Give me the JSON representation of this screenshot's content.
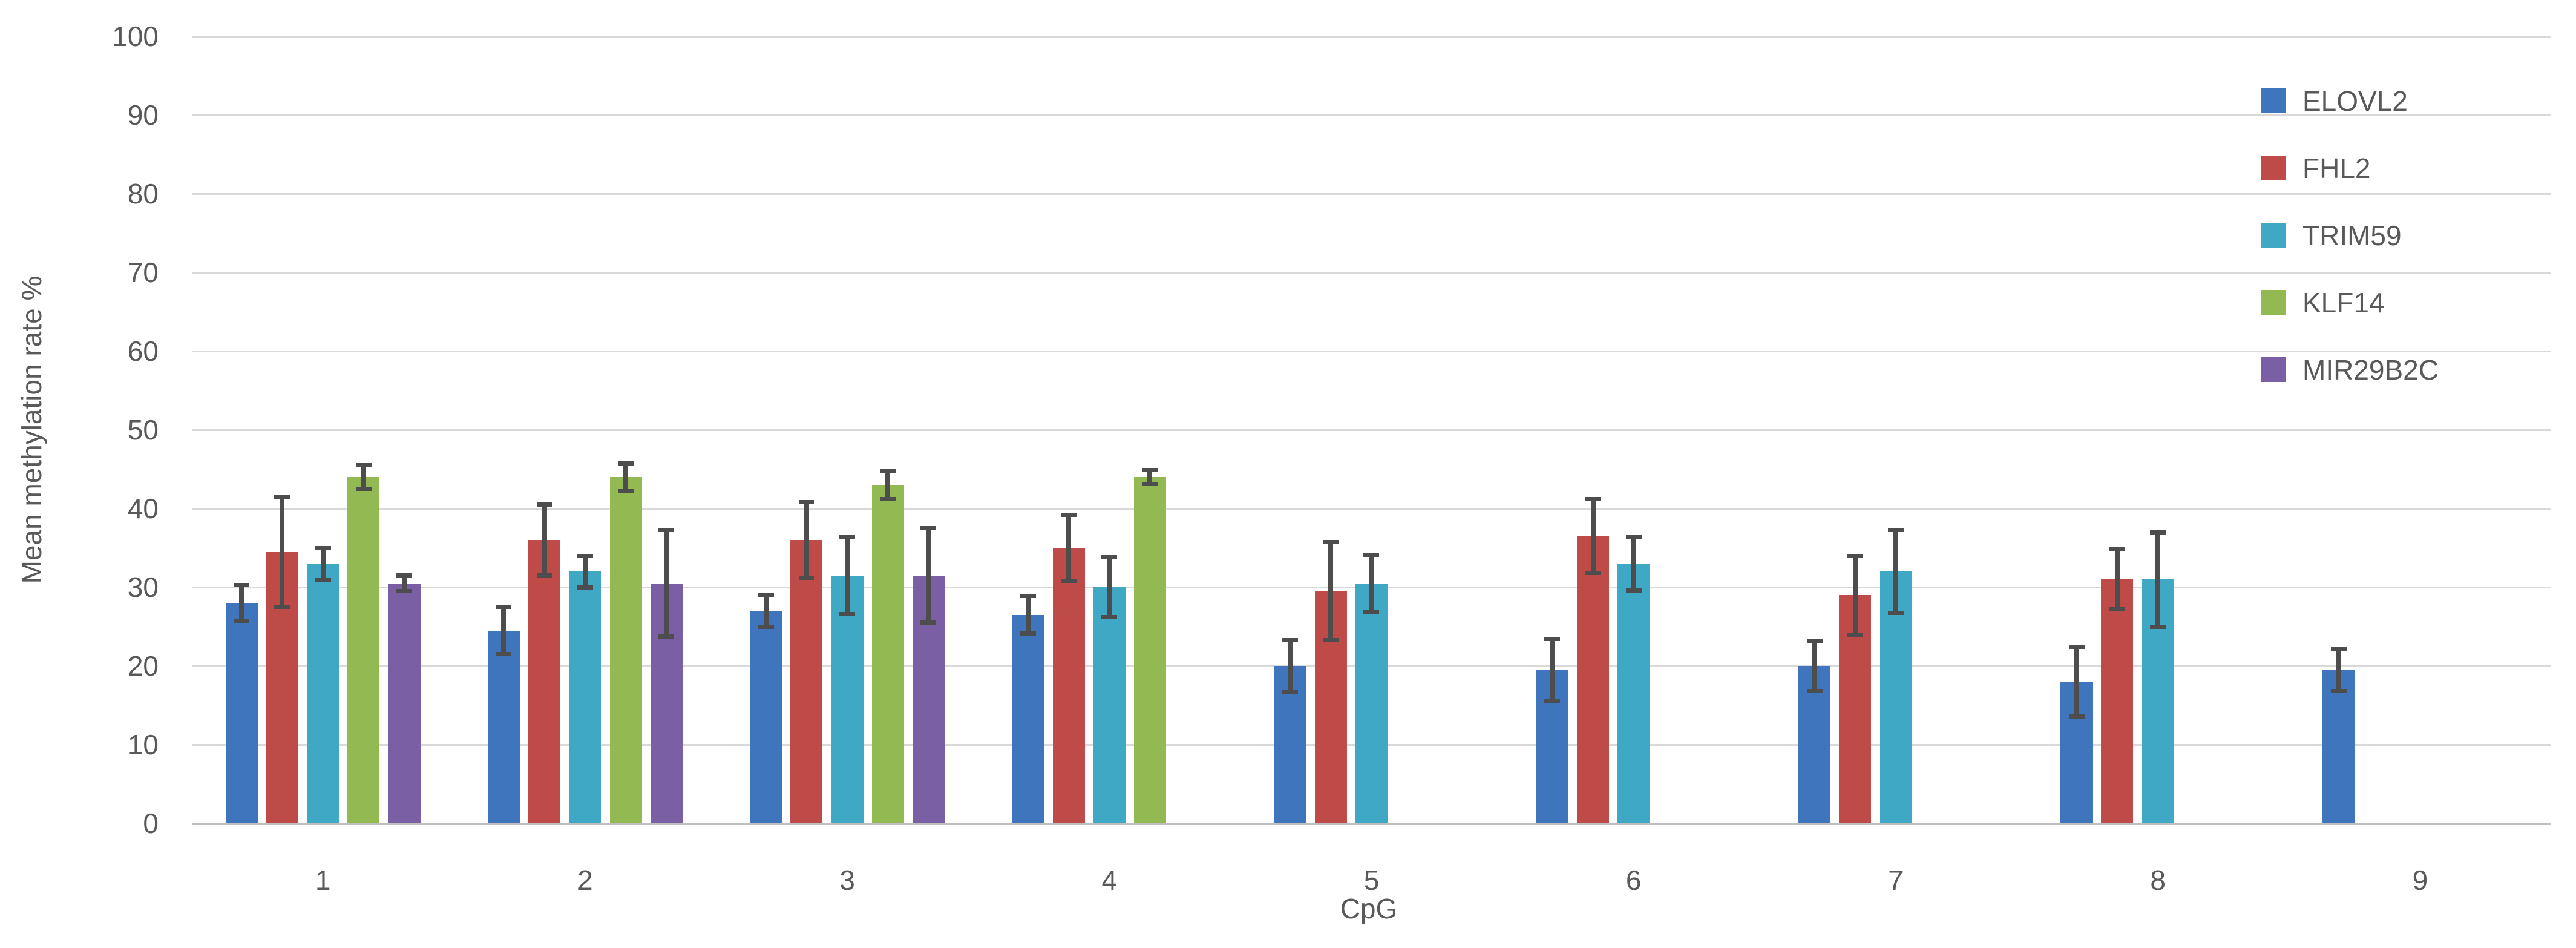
{
  "chart_data": {
    "type": "bar",
    "title": "",
    "xlabel": "CpG",
    "ylabel": "Mean methylation rate %",
    "ylim": [
      0,
      100
    ],
    "yticks": [
      0,
      10,
      20,
      30,
      40,
      50,
      60,
      70,
      80,
      90,
      100
    ],
    "grid": true,
    "error_bars": true,
    "legend_position": "right",
    "categories": [
      "1",
      "2",
      "3",
      "4",
      "5",
      "6",
      "7",
      "8",
      "9"
    ],
    "series": [
      {
        "name": "ELOVL2",
        "color": "#3F75BC",
        "values": [
          28,
          24.5,
          27,
          26.5,
          20,
          19.5,
          20,
          18,
          19.5
        ],
        "errors": [
          2.3,
          3,
          2,
          2.4,
          3.3,
          3.9,
          3.2,
          4.4,
          2.7
        ]
      },
      {
        "name": "FHL2",
        "color": "#BE4B48",
        "values": [
          34.5,
          36,
          36,
          35,
          29.5,
          36.5,
          29,
          31,
          null
        ],
        "errors": [
          7,
          4.5,
          4.8,
          4.2,
          6.2,
          4.7,
          5,
          3.8,
          null
        ]
      },
      {
        "name": "TRIM59",
        "color": "#3FA8C4",
        "values": [
          33,
          32,
          31.5,
          30,
          30.5,
          33,
          32,
          31,
          null
        ],
        "errors": [
          2,
          2,
          4.9,
          3.8,
          3.6,
          3.4,
          5.3,
          6,
          null
        ]
      },
      {
        "name": "KLF14",
        "color": "#92B952",
        "values": [
          44,
          44,
          43,
          44,
          null,
          null,
          null,
          null,
          null
        ],
        "errors": [
          1.5,
          1.7,
          1.8,
          0.9,
          null,
          null,
          null,
          null,
          null
        ]
      },
      {
        "name": "MIR29B2C",
        "color": "#7A5FA4",
        "values": [
          30.5,
          30.5,
          31.5,
          null,
          null,
          null,
          null,
          null,
          null
        ],
        "errors": [
          1,
          6.8,
          6,
          null,
          null,
          null,
          null,
          null,
          null
        ]
      }
    ],
    "palette": {
      "gridline": "#D9D9D9",
      "axis_line": "#BFBFBF",
      "error_bar": "#4D4D4D",
      "text": "#595959"
    }
  }
}
